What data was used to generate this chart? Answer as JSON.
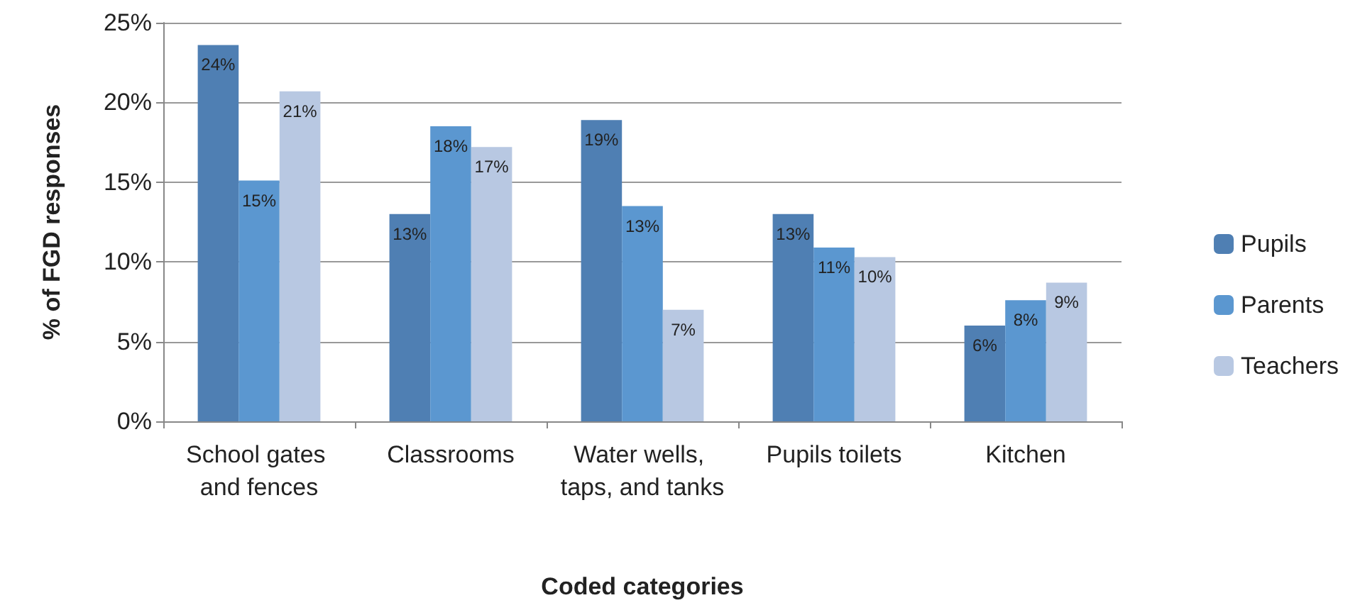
{
  "chart_data": {
    "type": "bar",
    "xlabel": "Coded categories",
    "ylabel": "% of FGD responses",
    "categories": [
      "School gates and fences",
      "Classrooms",
      "Water wells, taps, and tanks",
      "Pupils toilets",
      "Kitchen"
    ],
    "series": [
      {
        "name": "Pupils",
        "color": "#4f7fb3",
        "values": [
          23.6,
          13,
          18.9,
          13,
          6
        ],
        "value_labels": [
          "24%",
          "13%",
          "19%",
          "13%",
          "6%"
        ]
      },
      {
        "name": "Parents",
        "color": "#5b97d0",
        "values": [
          15.1,
          18.5,
          13.5,
          10.9,
          7.6
        ],
        "value_labels": [
          "15%",
          "18%",
          "13%",
          "11%",
          "8%"
        ]
      },
      {
        "name": "Teachers",
        "color": "#b8c8e2",
        "values": [
          20.7,
          17.2,
          7,
          10.3,
          8.7
        ],
        "value_labels": [
          "21%",
          "17%",
          "7%",
          "10%",
          "9%"
        ]
      }
    ],
    "ylim": [
      0,
      25
    ],
    "yticks": [
      {
        "value": 0,
        "label": "0%"
      },
      {
        "value": 5,
        "label": "5%"
      },
      {
        "value": 10,
        "label": "10%"
      },
      {
        "value": 15,
        "label": "15%"
      },
      {
        "value": 20,
        "label": "20%"
      },
      {
        "value": 25,
        "label": "25%"
      }
    ],
    "grid": "y",
    "legend": "right"
  }
}
